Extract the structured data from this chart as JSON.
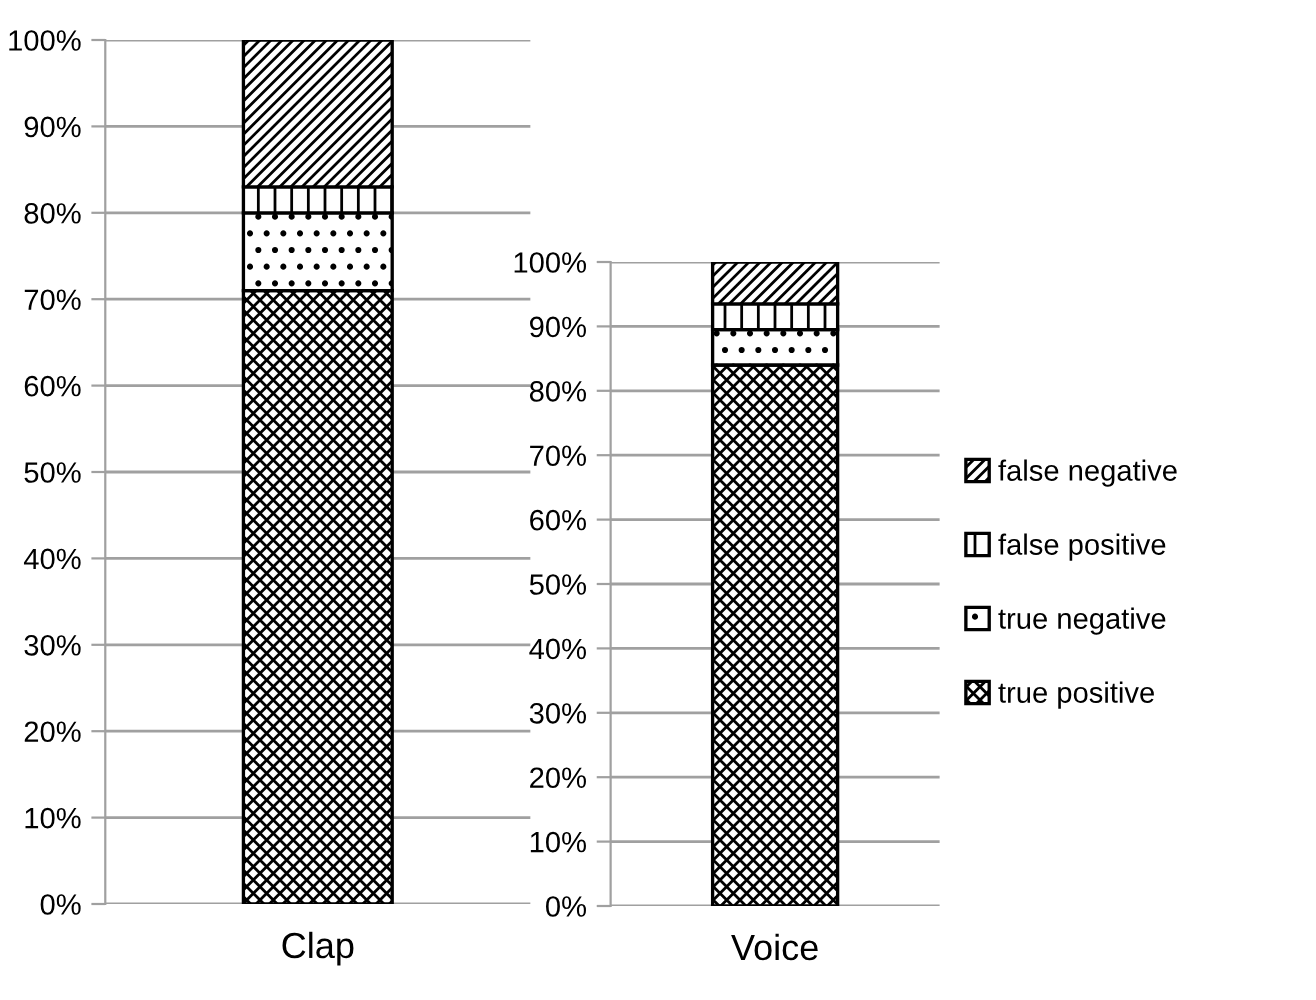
{
  "chart_data": [
    {
      "type": "bar",
      "stacked": true,
      "categories": [
        "Clap"
      ],
      "ylim": [
        0,
        1
      ],
      "yticks": [
        {
          "value": 0,
          "label": "0%"
        },
        {
          "value": 0.1,
          "label": "10%"
        },
        {
          "value": 0.2,
          "label": "20%"
        },
        {
          "value": 0.3,
          "label": "30%"
        },
        {
          "value": 0.4,
          "label": "40%"
        },
        {
          "value": 0.5,
          "label": "50%"
        },
        {
          "value": 0.6,
          "label": "60%"
        },
        {
          "value": 0.7,
          "label": "70%"
        },
        {
          "value": 0.8,
          "label": "80%"
        },
        {
          "value": 0.9,
          "label": "90%"
        },
        {
          "value": 1,
          "label": "100%"
        }
      ],
      "grid": "y",
      "series": [
        {
          "color": "#000000",
          "values": [
            0.71
          ]
        },
        {
          "color": "#000000",
          "values": [
            0.09
          ]
        },
        {
          "color": "#000000",
          "values": [
            0.03
          ]
        },
        {
          "color": "#000000",
          "values": [
            0.17
          ]
        }
      ]
    },
    {
      "type": "bar",
      "stacked": true,
      "categories": [
        "Voice"
      ],
      "ylim": [
        0,
        1
      ],
      "yticks": [
        {
          "value": 0,
          "label": "0%"
        },
        {
          "value": 0.1,
          "label": "10%"
        },
        {
          "value": 0.2,
          "label": "20%"
        },
        {
          "value": 0.3,
          "label": "30%"
        },
        {
          "value": 0.4,
          "label": "40%"
        },
        {
          "value": 0.5,
          "label": "50%"
        },
        {
          "value": 0.6,
          "label": "60%"
        },
        {
          "value": 0.7,
          "label": "70%"
        },
        {
          "value": 0.8,
          "label": "80%"
        },
        {
          "value": 0.9,
          "label": "90%"
        },
        {
          "value": 1,
          "label": "100%"
        }
      ],
      "grid": "y",
      "legend": "right",
      "series": [
        {
          "name": "true positive",
          "color": "#000000",
          "values": [
            0.84
          ]
        },
        {
          "name": "true negative",
          "color": "#000000",
          "values": [
            0.055
          ]
        },
        {
          "name": "false positive",
          "color": "#000000",
          "values": [
            0.04
          ]
        },
        {
          "name": "false negative",
          "color": "#000000",
          "values": [
            0.065
          ]
        }
      ]
    }
  ]
}
